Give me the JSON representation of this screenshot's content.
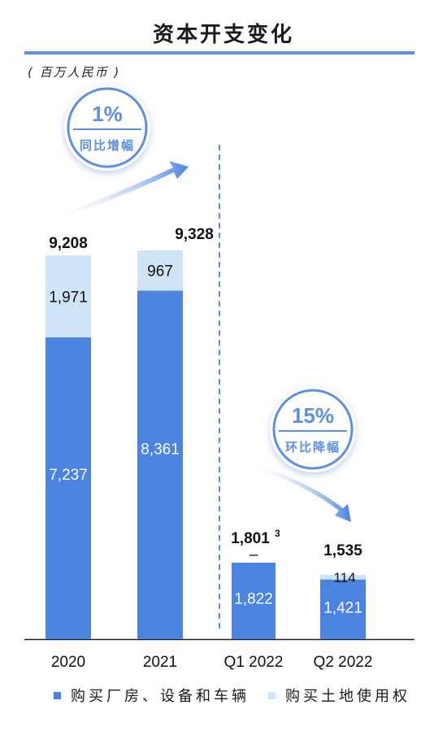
{
  "title": "资本开支变化",
  "unit_label": "( 百万人民币 )",
  "colors": {
    "primary": "#4a84e0",
    "light": "#cfe4f6",
    "accent": "#5b8fe3",
    "text": "#1a1a1a"
  },
  "callouts": [
    {
      "value": "1%",
      "caption": "同比增幅"
    },
    {
      "value": "15%",
      "caption": "环比降幅"
    }
  ],
  "chart_data": {
    "type": "bar",
    "stacked": true,
    "categories": [
      "2020",
      "2021",
      "Q1 2022",
      "Q2 2022"
    ],
    "series": [
      {
        "name": "购买厂房、设备和车辆",
        "values": [
          7237,
          8361,
          1822,
          1421
        ],
        "labels": [
          "7,237",
          "8,361",
          "1,822",
          "1,421"
        ]
      },
      {
        "name": "购买土地使用权",
        "values": [
          1971,
          967,
          -21,
          114
        ],
        "labels": [
          "1,971",
          "967",
          "–",
          "114"
        ]
      }
    ],
    "totals": [
      "9,208",
      "9,328",
      "1,801",
      "1,535"
    ],
    "total_superscripts": [
      "",
      "",
      "3",
      ""
    ],
    "legend_position": "bottom"
  }
}
